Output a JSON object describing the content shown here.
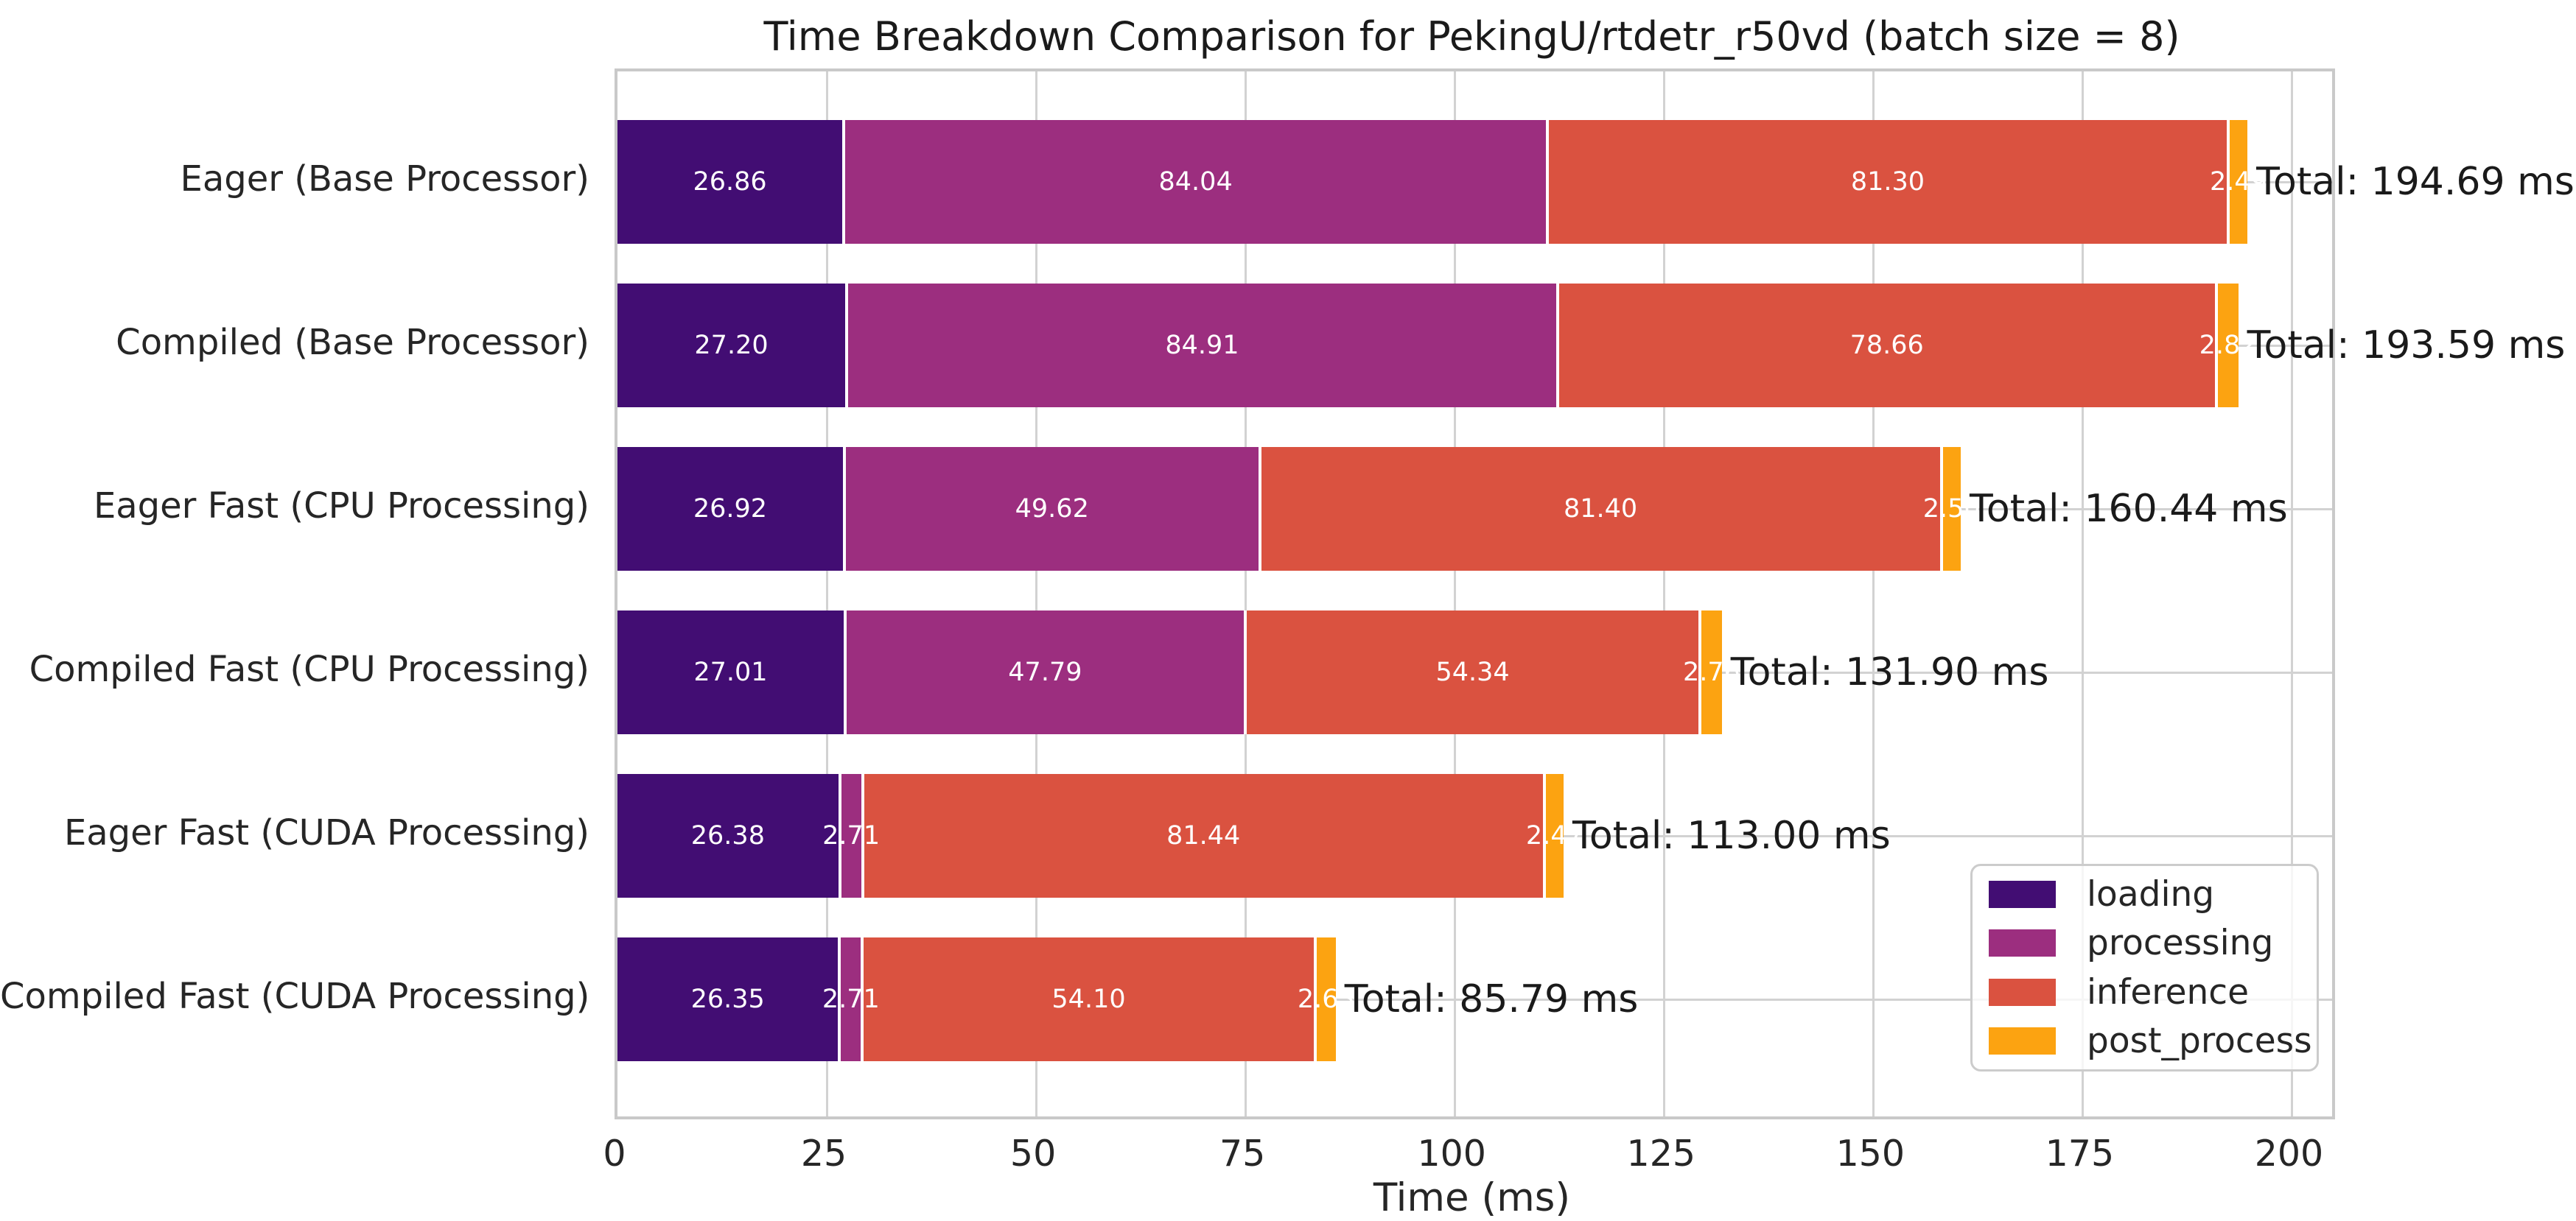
{
  "chart_data": {
    "type": "bar",
    "orientation": "horizontal",
    "stacked": true,
    "title": "Time Breakdown Comparison for PekingU/rtdetr_r50vd (batch size = 8)",
    "xlabel": "Time (ms)",
    "xlim": [
      0,
      204.8
    ],
    "xticks": [
      0,
      25,
      50,
      75,
      100,
      125,
      150,
      175,
      200
    ],
    "grid": true,
    "categories": [
      "Eager (Base Processor)",
      "Compiled (Base Processor)",
      "Eager Fast (CPU Processing)",
      "Compiled Fast (CPU Processing)",
      "Eager Fast (CUDA Processing)",
      "Compiled Fast (CUDA Processing)"
    ],
    "series": [
      {
        "name": "loading",
        "color": "#420d73",
        "values": [
          26.86,
          27.2,
          26.92,
          27.01,
          26.38,
          26.35
        ]
      },
      {
        "name": "processing",
        "color": "#9c2e7f",
        "values": [
          84.04,
          84.91,
          49.62,
          47.79,
          2.71,
          2.71
        ]
      },
      {
        "name": "inference",
        "color": "#da5240",
        "values": [
          81.3,
          78.66,
          81.4,
          54.34,
          81.44,
          54.1
        ]
      },
      {
        "name": "post_process",
        "color": "#fca311",
        "values": [
          2.49,
          2.82,
          2.5,
          2.76,
          2.47,
          2.63
        ]
      }
    ],
    "bar_label_decimals": 2,
    "totals": [
      194.69,
      193.59,
      160.44,
      131.9,
      113.0,
      85.79
    ],
    "total_labels": [
      "Total: 194.69 ms",
      "Total: 193.59 ms",
      "Total: 160.44 ms",
      "Total: 131.90 ms",
      "Total: 113.00 ms",
      "Total: 85.79 ms"
    ],
    "legend": {
      "position": "lower right",
      "entries": [
        "loading",
        "processing",
        "inference",
        "post_process"
      ]
    },
    "colors": {
      "grid": "#d2d2d2",
      "spine": "#c9c9c9",
      "tick_text": "#262626",
      "title_text": "#1a1a1a",
      "bar_label_text": "#ffffff"
    }
  }
}
